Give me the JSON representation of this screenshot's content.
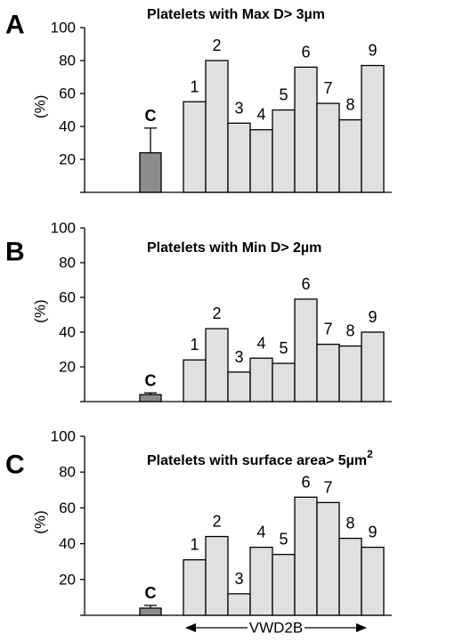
{
  "chart_data": [
    {
      "type": "bar",
      "panel_label": "A",
      "title": "Platelets with Max D> 3µm",
      "ylabel": "(%)",
      "ylim": [
        0,
        100
      ],
      "yticks": [
        "20",
        "40",
        "60",
        "80",
        "100"
      ],
      "control": {
        "label": "C",
        "value": 24,
        "error": 15
      },
      "categories": [
        "1",
        "2",
        "3",
        "4",
        "5",
        "6",
        "7",
        "8",
        "9"
      ],
      "values": [
        55,
        80,
        42,
        38,
        50,
        76,
        54,
        44,
        77
      ],
      "colors": {
        "control": "#8c8c8c",
        "bars": "#e0e0e0",
        "outline": "#000000"
      }
    },
    {
      "type": "bar",
      "panel_label": "B",
      "title": "Platelets with Min D> 2µm",
      "ylabel": "(%)",
      "ylim": [
        0,
        100
      ],
      "yticks": [
        "20",
        "40",
        "60",
        "80",
        "100"
      ],
      "control": {
        "label": "C",
        "value": 4,
        "error": 1
      },
      "categories": [
        "1",
        "2",
        "3",
        "4",
        "5",
        "6",
        "7",
        "8",
        "9"
      ],
      "values": [
        24,
        42,
        17,
        25,
        22,
        59,
        33,
        32,
        40
      ],
      "colors": {
        "control": "#8c8c8c",
        "bars": "#e0e0e0",
        "outline": "#000000"
      }
    },
    {
      "type": "bar",
      "panel_label": "C",
      "title": "Platelets with surface area> 5µm",
      "title_superscript": "2",
      "ylabel": "(%)",
      "ylim": [
        0,
        100
      ],
      "yticks": [
        "20",
        "40",
        "60",
        "80",
        "100"
      ],
      "control": {
        "label": "C",
        "value": 4,
        "error": 1.5
      },
      "categories": [
        "1",
        "2",
        "3",
        "4",
        "5",
        "6",
        "7",
        "8",
        "9"
      ],
      "values": [
        31,
        44,
        12,
        38,
        34,
        66,
        63,
        43,
        38
      ],
      "xlabel": "VWD2B",
      "colors": {
        "control": "#8c8c8c",
        "bars": "#e0e0e0",
        "outline": "#000000"
      }
    }
  ]
}
